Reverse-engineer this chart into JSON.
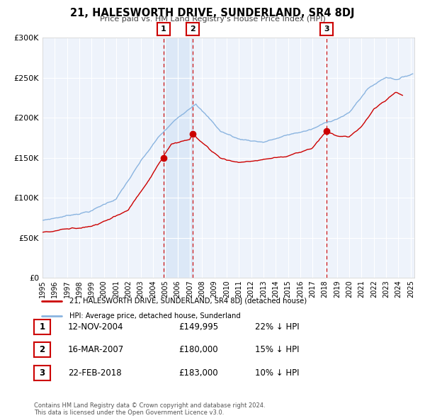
{
  "title": "21, HALESWORTH DRIVE, SUNDERLAND, SR4 8DJ",
  "subtitle": "Price paid vs. HM Land Registry's House Price Index (HPI)",
  "background_color": "#ffffff",
  "plot_bg_color": "#eef3fb",
  "shade_color": "#dce8f7",
  "grid_color": "#ffffff",
  "hpi_color": "#8ab4e0",
  "price_color": "#cc0000",
  "sale_dates_decimal": [
    2004.865,
    2007.208,
    2018.125
  ],
  "sale_prices": [
    149995,
    180000,
    183000
  ],
  "sale_labels": [
    "1",
    "2",
    "3"
  ],
  "legend_entries": [
    "21, HALESWORTH DRIVE, SUNDERLAND, SR4 8DJ (detached house)",
    "HPI: Average price, detached house, Sunderland"
  ],
  "table_rows": [
    {
      "num": "1",
      "date": "12-NOV-2004",
      "price": "£149,995",
      "pct": "22% ↓ HPI"
    },
    {
      "num": "2",
      "date": "16-MAR-2007",
      "price": "£180,000",
      "pct": "15% ↓ HPI"
    },
    {
      "num": "3",
      "date": "22-FEB-2018",
      "price": "£183,000",
      "pct": "10% ↓ HPI"
    }
  ],
  "footnote": "Contains HM Land Registry data © Crown copyright and database right 2024.\nThis data is licensed under the Open Government Licence v3.0.",
  "ylim": [
    0,
    300000
  ],
  "yticks": [
    0,
    50000,
    100000,
    150000,
    200000,
    250000,
    300000
  ],
  "ytick_labels": [
    "£0",
    "£50K",
    "£100K",
    "£150K",
    "£200K",
    "£250K",
    "£300K"
  ],
  "xmin": 1995,
  "xmax": 2025.3
}
